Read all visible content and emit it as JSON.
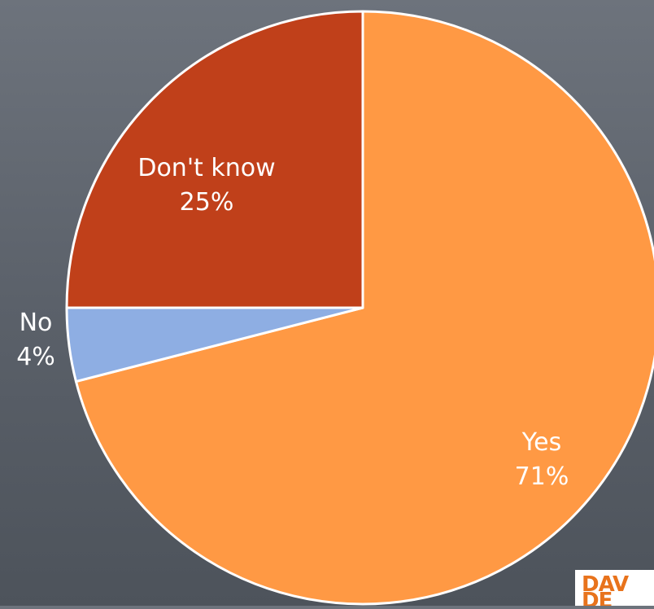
{
  "chart_data": {
    "type": "pie",
    "title": "",
    "slices": [
      {
        "label": "Yes",
        "value": 71,
        "percent_label": "71%",
        "color": "#ff9944"
      },
      {
        "label": "No",
        "value": 4,
        "percent_label": "4%",
        "color": "#8eaee3"
      },
      {
        "label": "Don't know",
        "value": 25,
        "percent_label": "25%",
        "color": "#c0401a"
      }
    ],
    "start": "12 o'clock",
    "direction": "clockwise",
    "slice_outline_color": "#ffffff",
    "label_color": "#ffffff"
  },
  "logo": {
    "text": "DAV DE"
  }
}
